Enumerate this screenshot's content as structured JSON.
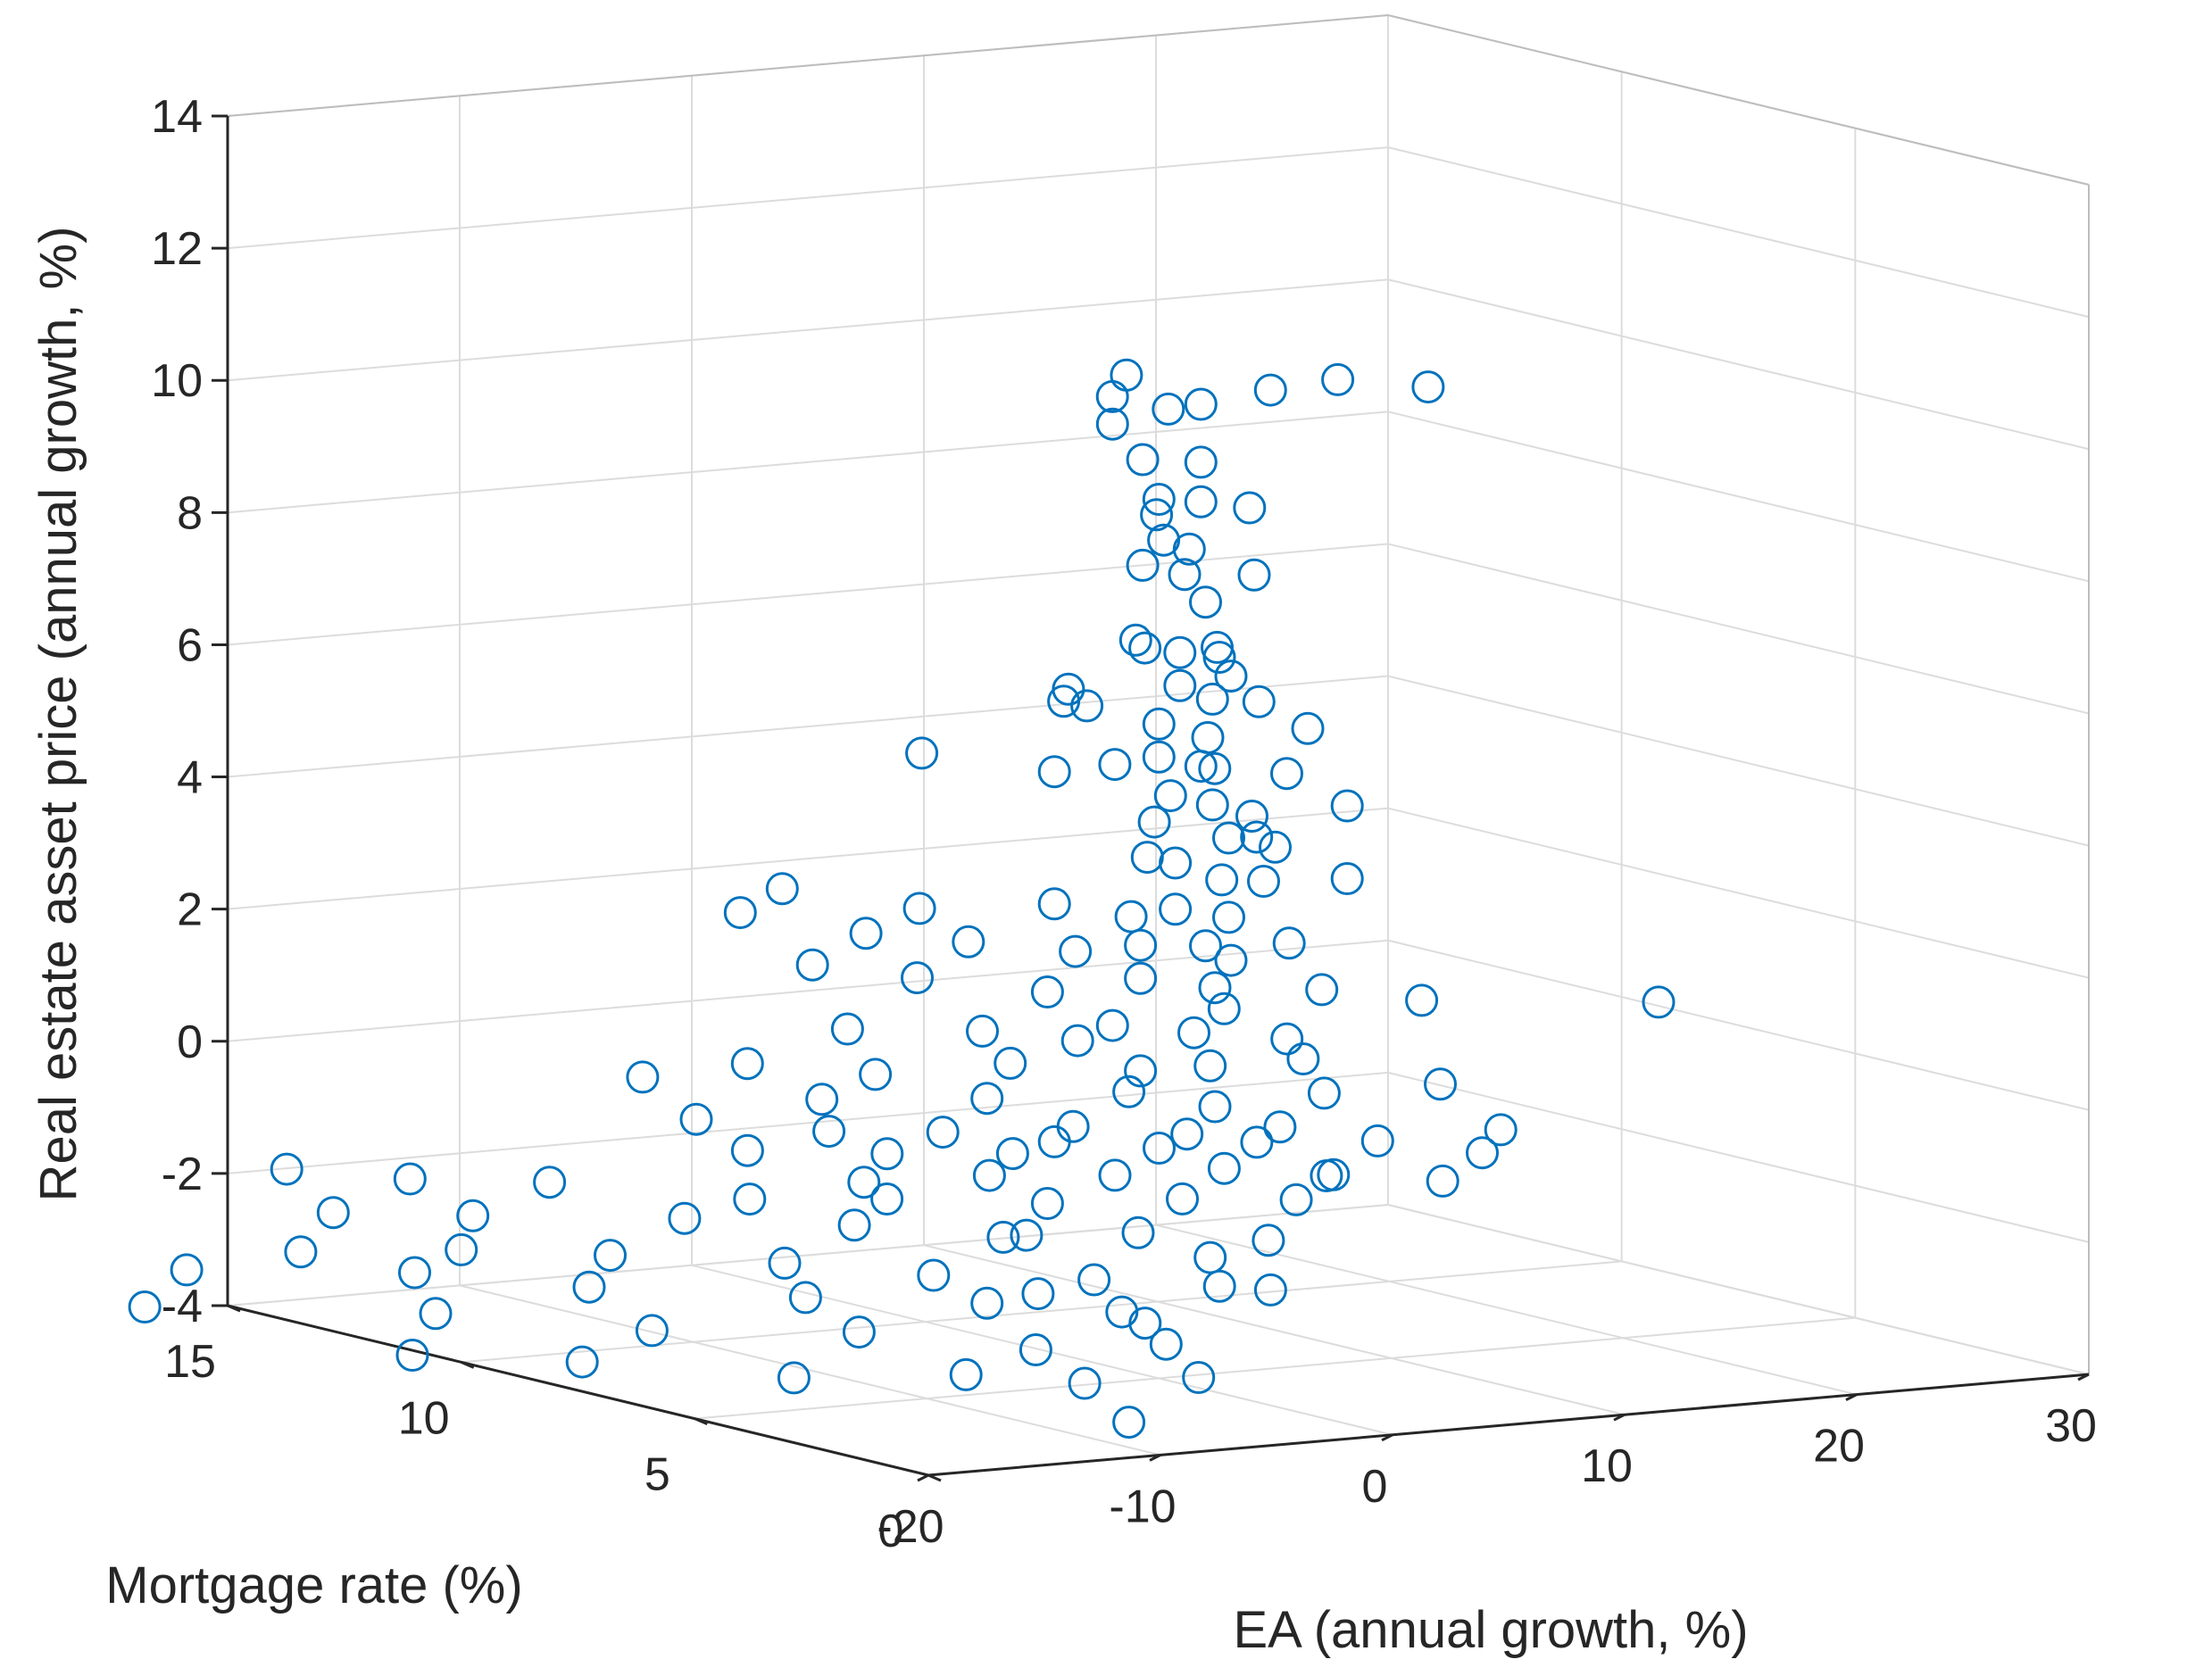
{
  "chart_data": {
    "type": "scatter3d",
    "marker": "circle-open",
    "color": "#0072bd",
    "xlabel": "EA (annual growth, %)",
    "ylabel": "Mortgage rate (%)",
    "zlabel": "Real estate asset price (annual growth, %)",
    "xlim": [
      -20,
      30
    ],
    "ylim": [
      0,
      15
    ],
    "zlim": [
      -4,
      14
    ],
    "xticks": [
      "-20",
      "-10",
      "0",
      "10",
      "20",
      "30"
    ],
    "yticks": [
      "0",
      "5",
      "10",
      "15"
    ],
    "zticks": [
      "-4",
      "-2",
      "0",
      "2",
      "4",
      "6",
      "8",
      "10",
      "12",
      "14"
    ],
    "grid": true,
    "points": [
      [
        -1.2,
        5.1,
        11.2
      ],
      [
        -1.0,
        5.5,
        10.8
      ],
      [
        -2.0,
        5.0,
        10.5
      ],
      [
        0.0,
        4.8,
        10.7
      ],
      [
        0.8,
        4.5,
        10.8
      ],
      [
        4.0,
        4.6,
        10.9
      ],
      [
        7.5,
        4.9,
        10.9
      ],
      [
        12.0,
        5.2,
        10.6
      ],
      [
        -0.5,
        5.1,
        9.9
      ],
      [
        1.0,
        4.6,
        9.9
      ],
      [
        0.0,
        5.0,
        9.3
      ],
      [
        1.0,
        4.6,
        9.3
      ],
      [
        0.5,
        5.3,
        9.0
      ],
      [
        3.5,
        4.8,
        9.1
      ],
      [
        0.0,
        4.9,
        8.7
      ],
      [
        0.5,
        4.6,
        8.6
      ],
      [
        -0.5,
        5.1,
        8.3
      ],
      [
        0.5,
        4.7,
        8.2
      ],
      [
        3.5,
        4.7,
        8.1
      ],
      [
        1.0,
        4.5,
        7.8
      ],
      [
        -1.0,
        5.0,
        7.2
      ],
      [
        0.5,
        4.8,
        7.0
      ],
      [
        1.5,
        4.5,
        7.1
      ],
      [
        0.0,
        5.3,
        7.0
      ],
      [
        2.0,
        4.7,
        6.9
      ],
      [
        -3.5,
        5.2,
        6.5
      ],
      [
        -3.5,
        5.3,
        6.3
      ],
      [
        0.5,
        4.8,
        6.5
      ],
      [
        1.5,
        4.6,
        6.3
      ],
      [
        3.5,
        4.6,
        6.2
      ],
      [
        0.0,
        5.0,
        5.9
      ],
      [
        1.5,
        4.7,
        5.7
      ],
      [
        5.0,
        4.3,
        5.8
      ],
      [
        -7.0,
        6.6,
        5.4
      ],
      [
        -3.5,
        5.5,
        5.2
      ],
      [
        0.0,
        5.0,
        5.4
      ],
      [
        1.0,
        4.6,
        5.3
      ],
      [
        2.0,
        4.8,
        5.2
      ],
      [
        4.5,
        4.5,
        5.1
      ],
      [
        0.5,
        5.0,
        4.8
      ],
      [
        1.5,
        4.6,
        4.7
      ],
      [
        3.0,
        4.5,
        4.5
      ],
      [
        6.5,
        4.2,
        4.6
      ],
      [
        0.0,
        5.1,
        4.4
      ],
      [
        2.0,
        4.5,
        4.2
      ],
      [
        4.0,
        4.5,
        4.0
      ],
      [
        0.5,
        4.9,
        3.8
      ],
      [
        1.5,
        4.4,
        3.6
      ],
      [
        3.5,
        4.5,
        3.5
      ],
      [
        6.5,
        4.2,
        3.5
      ],
      [
        -11.0,
        7.6,
        3.3
      ],
      [
        -7.5,
        6.4,
        3.1
      ],
      [
        -3.5,
        5.5,
        3.2
      ],
      [
        -1.0,
        5.1,
        3.0
      ],
      [
        0.5,
        4.9,
        3.1
      ],
      [
        2.0,
        4.5,
        3.0
      ],
      [
        -12.0,
        8.0,
        2.9
      ],
      [
        -9.0,
        6.8,
        2.7
      ],
      [
        -6.0,
        6.1,
        2.6
      ],
      [
        -3.0,
        5.3,
        2.5
      ],
      [
        -1.0,
        4.9,
        2.6
      ],
      [
        1.0,
        4.5,
        2.6
      ],
      [
        4.0,
        4.2,
        2.6
      ],
      [
        -10.5,
        7.2,
        2.2
      ],
      [
        -8.0,
        6.2,
        2.1
      ],
      [
        -4.0,
        5.4,
        1.9
      ],
      [
        -1.0,
        4.9,
        2.1
      ],
      [
        1.0,
        4.3,
        2.0
      ],
      [
        5.0,
        4.0,
        1.9
      ],
      [
        8.5,
        3.6,
        1.7
      ],
      [
        -10.0,
        6.7,
        1.3
      ],
      [
        -6.0,
        5.8,
        1.3
      ],
      [
        -2.0,
        5.0,
        1.4
      ],
      [
        0.5,
        4.5,
        1.3
      ],
      [
        3.5,
        4.0,
        1.2
      ],
      [
        17.5,
        3.0,
        1.5
      ],
      [
        -12.5,
        7.6,
        0.7
      ],
      [
        -9.0,
        6.6,
        0.6
      ],
      [
        -5.0,
        5.7,
        0.8
      ],
      [
        -1.0,
        4.9,
        0.7
      ],
      [
        1.0,
        4.4,
        0.8
      ],
      [
        4.0,
        3.9,
        0.9
      ],
      [
        -15.0,
        8.6,
        0.4
      ],
      [
        -10.5,
        7.0,
        0.2
      ],
      [
        -6.0,
        5.7,
        0.3
      ],
      [
        -1.5,
        4.9,
        0.4
      ],
      [
        1.0,
        4.3,
        0.2
      ],
      [
        4.5,
        3.7,
        0.4
      ],
      [
        8.5,
        3.2,
        0.5
      ],
      [
        -14.5,
        7.7,
        -0.1
      ],
      [
        -11.0,
        6.6,
        -0.2
      ],
      [
        -7.5,
        5.9,
        -0.2
      ],
      [
        -3.5,
        5.1,
        -0.1
      ],
      [
        0.0,
        4.4,
        -0.2
      ],
      [
        3.0,
        3.9,
        -0.1
      ],
      [
        10.5,
        2.9,
        -0.2
      ],
      [
        -13.5,
        7.1,
        -0.5
      ],
      [
        -9.5,
        6.1,
        -0.5
      ],
      [
        -5.5,
        5.4,
        -0.5
      ],
      [
        -1.0,
        4.5,
        -0.4
      ],
      [
        2.0,
        3.9,
        -0.3
      ],
      [
        6.0,
        3.3,
        -0.3
      ],
      [
        9.5,
        2.8,
        -0.5
      ],
      [
        -10.5,
        6.1,
        -0.9
      ],
      [
        -6.5,
        5.4,
        -0.8
      ],
      [
        -2.5,
        4.7,
        -0.8
      ],
      [
        1.0,
        4.1,
        -0.7
      ],
      [
        4.5,
        3.5,
        -0.8
      ],
      [
        8.0,
        2.9,
        -0.9
      ],
      [
        -24.5,
        11.5,
        -1.2
      ],
      [
        -21.0,
        10.6,
        -1.3
      ],
      [
        -17.0,
        9.6,
        -1.3
      ],
      [
        -12.0,
        7.8,
        -1.4
      ],
      [
        -8.5,
        6.6,
        -1.3
      ],
      [
        -4.0,
        5.4,
        -1.3
      ],
      [
        0.0,
        4.5,
        -1.2
      ],
      [
        3.5,
        3.8,
        -1.2
      ],
      [
        -23.5,
        11.0,
        -1.8
      ],
      [
        -19.5,
        10.0,
        -1.8
      ],
      [
        -14.0,
        8.2,
        -1.7
      ],
      [
        -9.5,
        6.8,
        -1.7
      ],
      [
        -5.5,
        5.6,
        -1.8
      ],
      [
        -1.5,
        4.7,
        -1.7
      ],
      [
        2.5,
        3.9,
        -1.8
      ],
      [
        -24.5,
        11.2,
        -2.4
      ],
      [
        -20.0,
        10.0,
        -2.3
      ],
      [
        -16.0,
        8.8,
        -2.3
      ],
      [
        -11.5,
        7.3,
        -2.3
      ],
      [
        -7.5,
        6.1,
        -2.4
      ],
      [
        -3.0,
        4.9,
        -2.4
      ],
      [
        1.0,
        4.2,
        -2.5
      ],
      [
        -27.0,
        12.4,
        -2.8
      ],
      [
        -21.0,
        10.5,
        -2.7
      ],
      [
        -16.5,
        9.0,
        -2.8
      ],
      [
        -11.0,
        7.1,
        -2.8
      ],
      [
        -6.0,
        5.7,
        -2.8
      ],
      [
        -2.0,
        4.8,
        -2.9
      ],
      [
        -28.0,
        12.8,
        -3.4
      ],
      [
        -20.5,
        10.3,
        -3.3
      ],
      [
        -15.0,
        8.4,
        -3.4
      ],
      [
        -9.5,
        6.7,
        -3.3
      ],
      [
        -4.5,
        5.4,
        -3.5
      ],
      [
        -0.5,
        4.6,
        -3.4
      ],
      [
        -21.5,
        10.3,
        -3.9
      ],
      [
        -17.0,
        8.9,
        -3.9
      ],
      [
        -11.5,
        7.1,
        -4.0
      ],
      [
        -6.5,
        5.9,
        -3.9
      ],
      [
        -3.0,
        5.1,
        -4.0
      ],
      [
        0.5,
        4.4,
        -3.9
      ],
      [
        -1.5,
        4.9,
        -4.6
      ],
      [
        -2.5,
        5.3,
        6.2
      ],
      [
        2.5,
        4.7,
        6.6
      ],
      [
        -1.5,
        5.2,
        5.3
      ],
      [
        3.0,
        4.4,
        4.2
      ],
      [
        -0.5,
        5.0,
        3.9
      ],
      [
        2.5,
        4.7,
        2.3
      ],
      [
        -2.5,
        5.5,
        1.1
      ],
      [
        2.0,
        4.6,
        1.6
      ],
      [
        -3.5,
        5.5,
        -0.4
      ],
      [
        5.0,
        3.9,
        -0.9
      ],
      [
        -4.5,
        5.6,
        -1.8
      ],
      [
        1.0,
        4.4,
        -2.1
      ],
      [
        -4.0,
        5.6,
        -2.7
      ],
      [
        3.0,
        4.1,
        -2.6
      ],
      [
        -1.0,
        4.8,
        -3.1
      ]
    ]
  }
}
